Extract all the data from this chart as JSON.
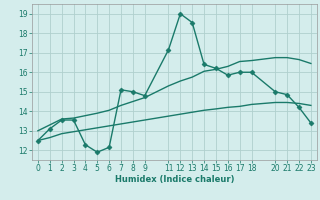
{
  "xlabel": "Humidex (Indice chaleur)",
  "bg_color": "#d4edec",
  "grid_color": "#b0d0ce",
  "line_color": "#1a7a6a",
  "xlim": [
    -0.5,
    23.5
  ],
  "ylim": [
    11.5,
    19.5
  ],
  "xticks": [
    0,
    1,
    2,
    3,
    4,
    5,
    6,
    7,
    8,
    9,
    11,
    12,
    13,
    14,
    15,
    16,
    17,
    18,
    20,
    21,
    22,
    23
  ],
  "yticks": [
    12,
    13,
    14,
    15,
    16,
    17,
    18,
    19
  ],
  "line1_x": [
    0,
    1,
    2,
    3,
    4,
    5,
    6,
    7,
    8,
    9,
    11,
    12,
    13,
    14,
    15,
    16,
    17,
    18,
    20,
    21,
    22,
    23
  ],
  "line1_y": [
    12.5,
    13.1,
    13.55,
    13.55,
    12.28,
    11.9,
    12.15,
    15.1,
    15.0,
    14.8,
    17.15,
    19.0,
    18.55,
    16.4,
    16.2,
    15.85,
    16.0,
    16.0,
    15.0,
    14.85,
    14.2,
    13.4
  ],
  "line2_x": [
    0,
    2,
    3,
    5,
    6,
    7,
    8,
    9,
    11,
    12,
    13,
    14,
    15,
    16,
    17,
    18,
    20,
    21,
    22,
    23
  ],
  "line2_y": [
    13.0,
    13.6,
    13.65,
    13.9,
    14.05,
    14.3,
    14.5,
    14.7,
    15.3,
    15.55,
    15.75,
    16.05,
    16.15,
    16.3,
    16.55,
    16.6,
    16.75,
    16.75,
    16.65,
    16.45
  ],
  "line3_x": [
    0,
    1,
    2,
    3,
    4,
    5,
    6,
    7,
    8,
    9,
    11,
    12,
    13,
    14,
    15,
    16,
    17,
    18,
    20,
    21,
    22,
    23
  ],
  "line3_y": [
    12.5,
    12.65,
    12.85,
    12.95,
    13.05,
    13.15,
    13.25,
    13.35,
    13.45,
    13.55,
    13.75,
    13.85,
    13.95,
    14.05,
    14.12,
    14.2,
    14.25,
    14.35,
    14.45,
    14.45,
    14.4,
    14.3
  ],
  "marker_size": 2.5,
  "line_width": 1.0
}
